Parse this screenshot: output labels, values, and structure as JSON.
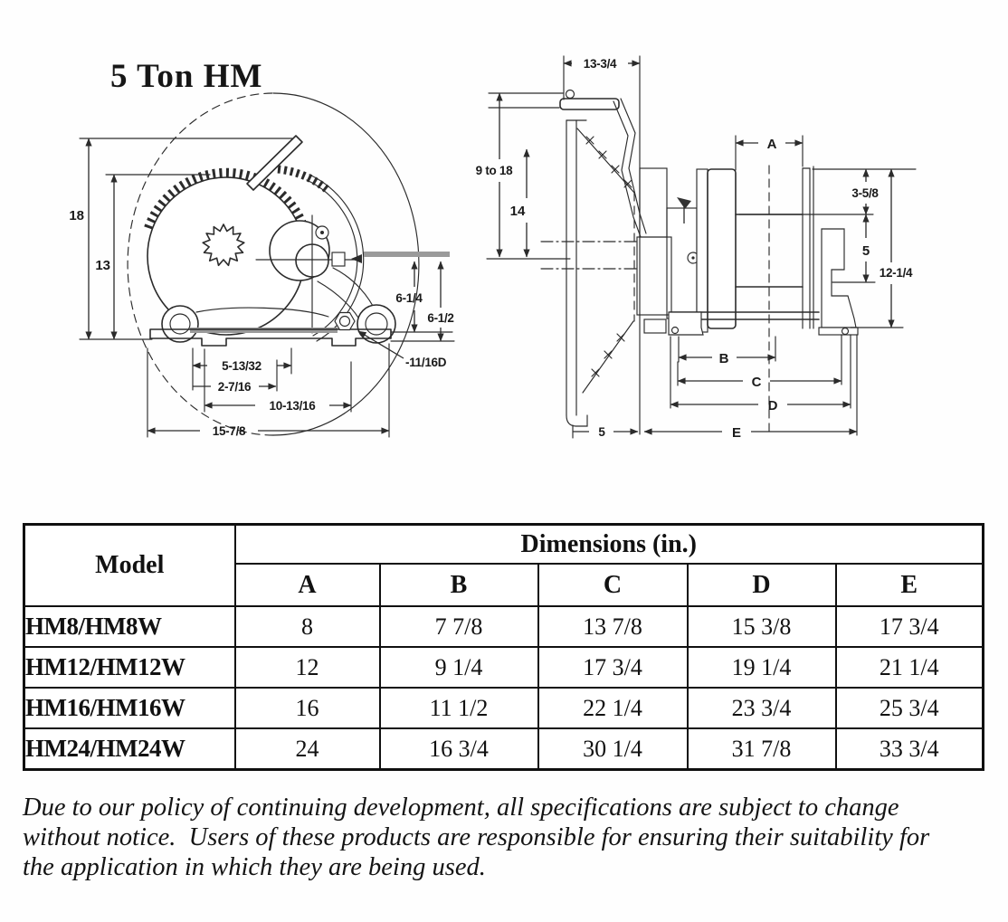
{
  "title": "5 Ton HM",
  "left_diagram": {
    "labels": {
      "height18": "18",
      "height13": "13",
      "dim6_14": "6-1/4",
      "dim6_12": "6-1/2",
      "dim11_16": "-11/16D",
      "dim5_13_32": "5-13/32",
      "dim2_7_16": "2-7/16",
      "dim10_13_16": "10-13/16",
      "dim15_7_8": "15-7/8"
    }
  },
  "right_diagram": {
    "labels": {
      "dim13_34": "13-3/4",
      "dim9to18": "9 to 18",
      "dim14": "14",
      "a": "A",
      "dim3_58": "3-5/8",
      "dim5": "5",
      "dim12_14": "12-1/4",
      "b": "B",
      "c": "C",
      "d": "D",
      "e": "E",
      "dim5_offset": "5"
    }
  },
  "table": {
    "model_header": "Model",
    "dims_header": "Dimensions (in.)",
    "columns": [
      "A",
      "B",
      "C",
      "D",
      "E"
    ],
    "rows": [
      {
        "model": "HM8/HM8W",
        "a": "8",
        "b": "7 7/8",
        "c": "13 7/8",
        "d": "15 3/8",
        "e": "17 3/4"
      },
      {
        "model": "HM12/HM12W",
        "a": "12",
        "b": "9 1/4",
        "c": "17 3/4",
        "d": "19 1/4",
        "e": "21 1/4"
      },
      {
        "model": "HM16/HM16W",
        "a": "16",
        "b": "11 1/2",
        "c": "22 1/4",
        "d": "23 3/4",
        "e": "25 3/4"
      },
      {
        "model": "HM24/HM24W",
        "a": "24",
        "b": "16 3/4",
        "c": "30 1/4",
        "d": "31 7/8",
        "e": "33 3/4"
      }
    ]
  },
  "disclaimer": {
    "line1": "Due to our policy of continuing development, all specifications are subject to change",
    "line2": "without notice.  Users of these products are responsible for ensuring their suitability for",
    "line3": "the application in which they are being used."
  }
}
